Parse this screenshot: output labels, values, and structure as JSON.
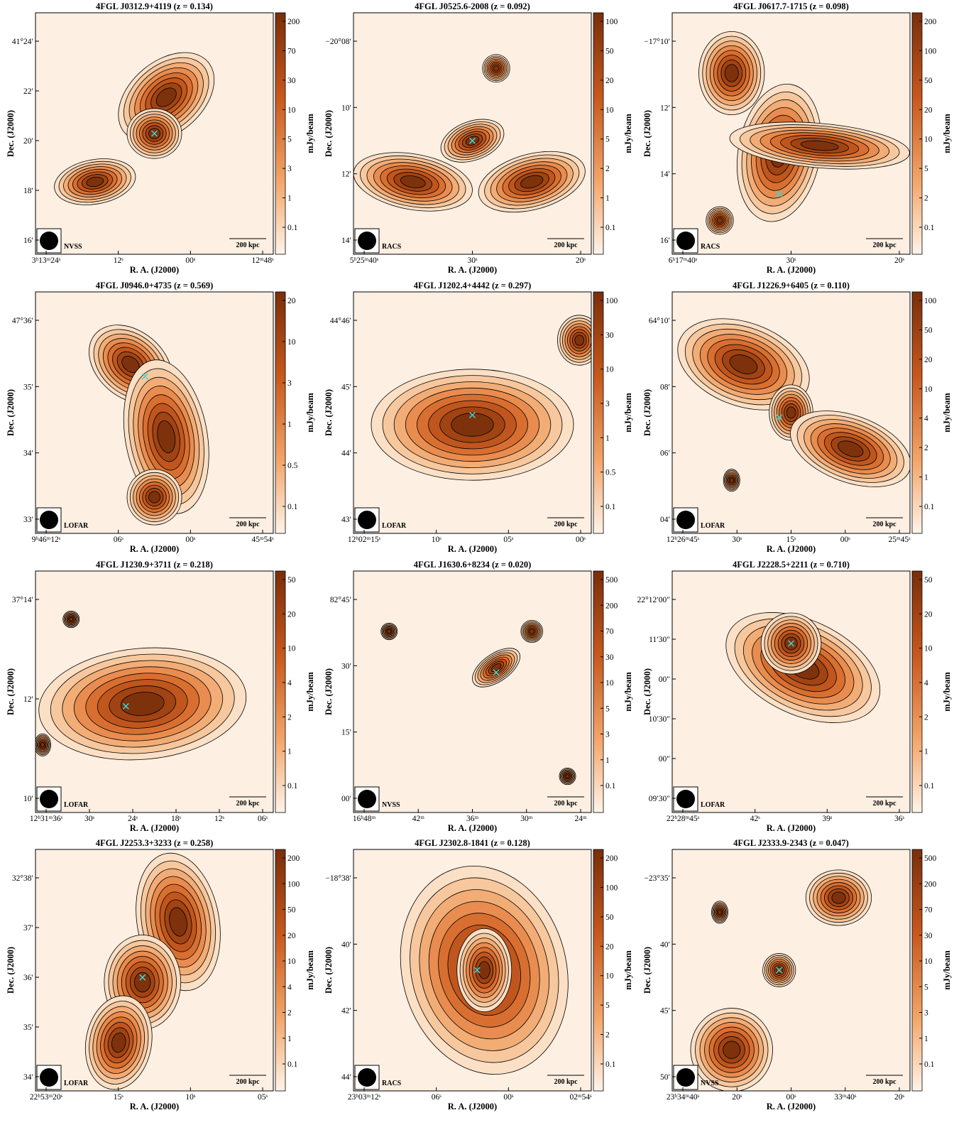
{
  "common": {
    "xlabel": "R. A. (J2000)",
    "ylabel": "Dec. (J2000)",
    "cbar_label": "mJy/beam",
    "scale": "200 kpc"
  },
  "panels": [
    {
      "title": "4FGL J0312.9+4119 (z = 0.134)",
      "survey": "NVSS",
      "yticks": [
        "41°24′",
        "22′",
        "20′",
        "18′",
        "16′"
      ],
      "xticks": [
        "3ʰ13ᵐ24ˢ",
        "12ˢ",
        "00ˢ",
        "12ᵐ48ˢ"
      ],
      "cbar_ticks": [
        "200",
        "70",
        "30",
        "10",
        "5",
        "3",
        "1",
        "0.1"
      ]
    },
    {
      "title": "4FGL J0525.6-2008 (z = 0.092)",
      "survey": "RACS",
      "yticks": [
        "−20°08′",
        "10′",
        "12′",
        "14′"
      ],
      "xticks": [
        "5ʰ25ᵐ40ˢ",
        "30ˢ",
        "20ˢ"
      ],
      "cbar_ticks": [
        "100",
        "50",
        "20",
        "10",
        "5",
        "2",
        "1",
        "0.1"
      ]
    },
    {
      "title": "4FGL J0617.7-1715 (z = 0.098)",
      "survey": "RACS",
      "yticks": [
        "−17°10′",
        "12′",
        "14′",
        "16′"
      ],
      "xticks": [
        "6ʰ17ᵐ40ˢ",
        "30ˢ",
        "20ˢ"
      ],
      "cbar_ticks": [
        "200",
        "100",
        "50",
        "20",
        "10",
        "5",
        "2",
        "0.1"
      ]
    },
    {
      "title": "4FGL J0946.0+4735 (z = 0.569)",
      "survey": "LOFAR",
      "yticks": [
        "47°36′",
        "35′",
        "34′",
        "33′"
      ],
      "xticks": [
        "9ʰ46ᵐ12ˢ",
        "06ˢ",
        "00ˢ",
        "45ᵐ54ˢ"
      ],
      "cbar_ticks": [
        "20",
        "10",
        "3",
        "1",
        "0.5",
        "0.1"
      ]
    },
    {
      "title": "4FGL J1202.4+4442 (z = 0.297)",
      "survey": "LOFAR",
      "yticks": [
        "44°46′",
        "45′",
        "44′",
        "43′"
      ],
      "xticks": [
        "12ʰ02ᵐ15ˢ",
        "10ˢ",
        "05ˢ",
        "00ˢ"
      ],
      "cbar_ticks": [
        "100",
        "30",
        "10",
        "3",
        "1",
        "0.5",
        "0.1"
      ]
    },
    {
      "title": "4FGL J1226.9+6405 (z = 0.110)",
      "survey": "LOFAR",
      "yticks": [
        "64°10′",
        "08′",
        "06′",
        "04′"
      ],
      "xticks": [
        "12ʰ26ᵐ45ˢ",
        "30ˢ",
        "15ˢ",
        "00ˢ",
        "25ᵐ45ˢ"
      ],
      "cbar_ticks": [
        "100",
        "50",
        "20",
        "10",
        "4",
        "2",
        "1",
        "0.1"
      ]
    },
    {
      "title": "4FGL J1230.9+3711 (z = 0.218)",
      "survey": "LOFAR",
      "yticks": [
        "37°14′",
        "12′",
        "10′"
      ],
      "xticks": [
        "12ʰ31ᵐ36ˢ",
        "30ˢ",
        "24ˢ",
        "18ˢ",
        "12ˢ",
        "06ˢ"
      ],
      "cbar_ticks": [
        "50",
        "20",
        "10",
        "4",
        "2",
        "1",
        "0.1"
      ]
    },
    {
      "title": "4FGL J1630.6+8234 (z = 0.020)",
      "survey": "NVSS",
      "yticks": [
        "82°45′",
        "30′",
        "15′",
        "00′"
      ],
      "xticks": [
        "16ʰ48ᵐ",
        "42ᵐ",
        "36ᵐ",
        "30ᵐ",
        "24ᵐ"
      ],
      "cbar_ticks": [
        "500",
        "200",
        "70",
        "30",
        "10",
        "5",
        "3",
        "1",
        "0.1"
      ]
    },
    {
      "title": "4FGL J2228.5+2211 (z = 0.710)",
      "survey": "LOFAR",
      "yticks": [
        "22°12′00″",
        "11′30″",
        "00″",
        "10′30″",
        "00″",
        "09′30″"
      ],
      "xticks": [
        "22ʰ28ᵐ45ˢ",
        "42ˢ",
        "39ˢ",
        "36ˢ"
      ],
      "cbar_ticks": [
        "50",
        "20",
        "10",
        "4",
        "2",
        "1",
        "0.1"
      ]
    },
    {
      "title": "4FGL J2253.3+3233 (z = 0.258)",
      "survey": "LOFAR",
      "yticks": [
        "32°38′",
        "37′",
        "36′",
        "35′",
        "34′"
      ],
      "xticks": [
        "22ʰ53ᵐ20ˢ",
        "15ˢ",
        "10ˢ",
        "05ˢ"
      ],
      "cbar_ticks": [
        "200",
        "100",
        "50",
        "20",
        "10",
        "4",
        "2",
        "1",
        "0.1"
      ]
    },
    {
      "title": "4FGL J2302.8-1841 (z = 0.128)",
      "survey": "RACS",
      "yticks": [
        "−18°38′",
        "40′",
        "42′",
        "44′"
      ],
      "xticks": [
        "23ʰ03ᵐ12ˢ",
        "06ˢ",
        "00ˢ",
        "02ᵐ54ˢ"
      ],
      "cbar_ticks": [
        "200",
        "100",
        "50",
        "20",
        "10",
        "5",
        "2",
        "0.1"
      ]
    },
    {
      "title": "4FGL J2333.9-2343 (z = 0.047)",
      "survey": "NVSS",
      "yticks": [
        "−23°35′",
        "40′",
        "45′",
        "50′"
      ],
      "xticks": [
        "23ʰ34ᵐ40ˢ",
        "20ˢ",
        "00ˢ",
        "33ᵐ40ˢ",
        "20ˢ"
      ],
      "cbar_ticks": [
        "500",
        "200",
        "70",
        "30",
        "10",
        "5",
        "3",
        "1",
        "0.1"
      ]
    }
  ]
}
